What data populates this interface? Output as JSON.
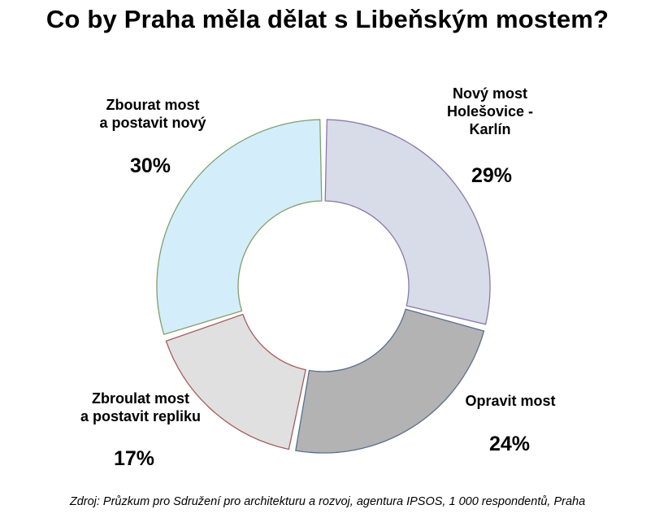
{
  "chart_data": {
    "type": "pie",
    "title": "Co by Praha měla dělat s Libeňským mostem?",
    "slices": [
      {
        "label": [
          "Nový most",
          "Holešovice -",
          "Karlín"
        ],
        "value": 29,
        "value_label": "29%",
        "fill": "#d8dbe8",
        "stroke": "#8a7aa6"
      },
      {
        "label": [
          "Opravit most"
        ],
        "value": 24,
        "value_label": "24%",
        "fill": "#b3b3b3",
        "stroke": "#5a6f8f"
      },
      {
        "label": [
          "Zbroulat most",
          "a postavit repliku"
        ],
        "value": 17,
        "value_label": "17%",
        "fill": "#e0e0e0",
        "stroke": "#a65a5a"
      },
      {
        "label": [
          "Zbourat most",
          "a postavit nový"
        ],
        "value": 30,
        "value_label": "30%",
        "fill": "#d3eefa",
        "stroke": "#7fa06a"
      }
    ],
    "source": "Zdroj: Průzkum pro Sdružení pro architekturu a rozvoj, agentura IPSOS, 1 000 respondentů, Praha"
  }
}
